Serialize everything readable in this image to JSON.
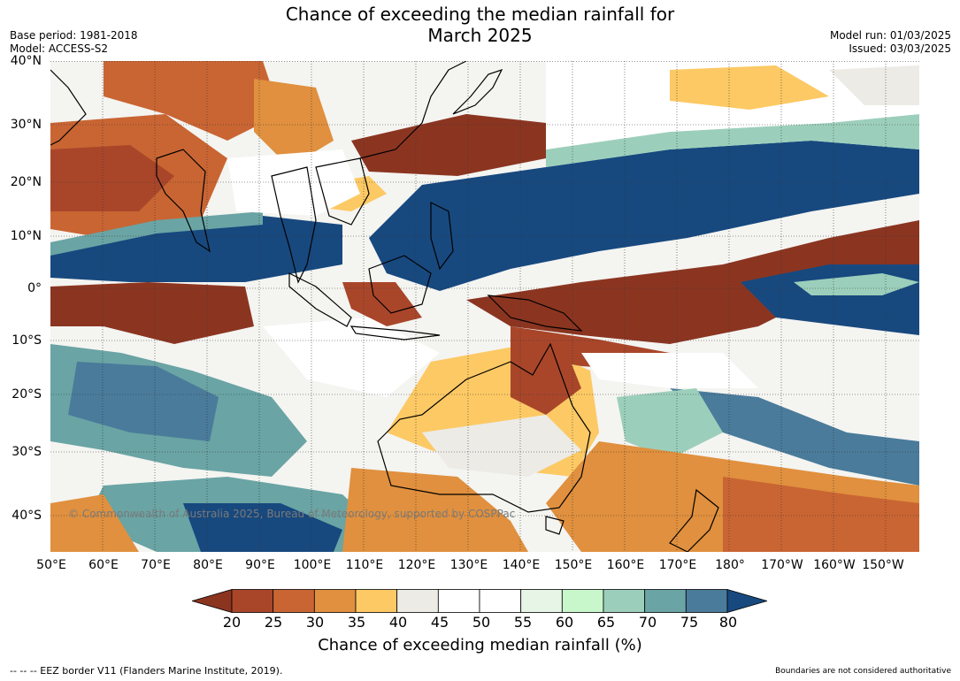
{
  "title_line1": "Chance of exceeding the median rainfall for",
  "title_line2": "March 2025",
  "meta_left": {
    "base_period": "Base period: 1981-2018",
    "model": "Model: ACCESS-S2"
  },
  "meta_right": {
    "model_run": "Model run: 01/03/2025",
    "issued": "Issued: 03/03/2025"
  },
  "lat_labels": [
    "40°N",
    "30°N",
    "20°N",
    "10°N",
    "0°",
    "10°S",
    "20°S",
    "30°S",
    "40°S"
  ],
  "lon_labels": [
    "50°E",
    "60°E",
    "70°E",
    "80°E",
    "90°E",
    "100°E",
    "110°E",
    "120°E",
    "130°E",
    "140°E",
    "150°E",
    "160°E",
    "170°E",
    "180°",
    "170°W",
    "160°W",
    "150°W"
  ],
  "colorbar": {
    "ticks": [
      "20",
      "25",
      "30",
      "35",
      "40",
      "45",
      "50",
      "55",
      "60",
      "65",
      "70",
      "75",
      "80"
    ],
    "colors": [
      "#8b3521",
      "#a9462a",
      "#c96533",
      "#e0903e",
      "#fcc964",
      "#ecebe6",
      "#ffffff",
      "#ffffff",
      "#e6f5e6",
      "#c8f7cb",
      "#9ccfbb",
      "#6aa4a4",
      "#4a7b9b",
      "#17497f"
    ],
    "title": "Chance of exceeding median rainfall (%)"
  },
  "copyright": "© Commonwealth of Australia 2025, Bureau of Meteorology, supported by COSPPac",
  "footer_left": "--  --  -- EEZ border V11 (Flanders Marine Institute, 2019).",
  "footer_right": "Boundaries are not considered authoritative"
}
